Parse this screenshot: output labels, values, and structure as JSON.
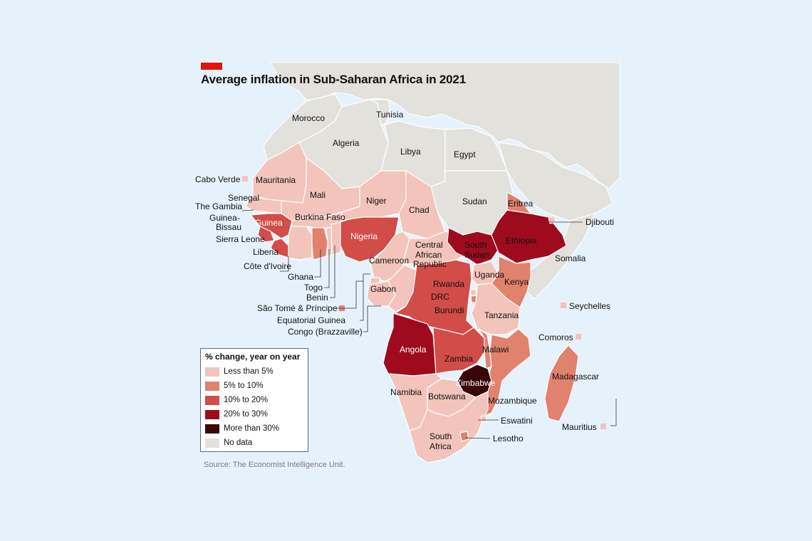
{
  "title": "Average inflation in Sub-Saharan Africa in 2021",
  "source": "Source: The Economist Intelligence Unit.",
  "legend": {
    "title": "% change, year on year",
    "items": [
      {
        "label": "Less than 5%",
        "color": "#f2c4bb"
      },
      {
        "label": "5% to 10%",
        "color": "#e0826e"
      },
      {
        "label": "10% to 20%",
        "color": "#d24c48"
      },
      {
        "label": "20% to 30%",
        "color": "#9e0b1e"
      },
      {
        "label": "More than 30%",
        "color": "#3b0607"
      },
      {
        "label": "No data",
        "color": "#e2e1dc"
      }
    ]
  },
  "colors": {
    "sea": "#e6f2fb",
    "border": "#ffffff",
    "accent": "#e3120b"
  },
  "countries": {
    "Morocco": "nodata",
    "Tunisia": "nodata",
    "Algeria": "nodata",
    "Libya": "nodata",
    "Egypt": "nodata",
    "Sudan": "nodata",
    "Somalia": "nodata",
    "Mauritania": "lt5",
    "Mali": "lt5",
    "Senegal": "lt5",
    "The Gambia": "lt5",
    "Guinea-Bissau": "lt5",
    "Guinea": "10to20",
    "Sierra Leone": "10to20",
    "Liberia": "10to20",
    "Côte d'Ivoire": "lt5",
    "Burkina Faso": "lt5",
    "Ghana": "5to10",
    "Togo": "lt5",
    "Benin": "lt5",
    "Niger": "lt5",
    "Nigeria": "10to20",
    "Chad": "lt5",
    "Cameroon": "lt5",
    "Central African Republic": "lt5",
    "Equatorial Guinea": "lt5",
    "Gabon": "lt5",
    "Congo (Brazzaville)": "lt5",
    "São Tomé & Príncipe": "5to10",
    "DRC": "10to20",
    "South Sudan": "20to30",
    "Ethiopia": "20to30",
    "Eritrea": "5to10",
    "Djibouti": "lt5",
    "Uganda": "lt5",
    "Kenya": "5to10",
    "Rwanda": "lt5",
    "Burundi": "5to10",
    "Tanzania": "lt5",
    "Angola": "20to30",
    "Zambia": "10to20",
    "Malawi": "5to10",
    "Zimbabwe": "gt30",
    "Mozambique": "5to10",
    "Madagascar": "5to10",
    "Namibia": "lt5",
    "Botswana": "lt5",
    "South Africa": "lt5",
    "Eswatini": "lt5",
    "Lesotho": "5to10",
    "Cabo Verde": "lt5",
    "Seychelles": "lt5",
    "Comoros": "lt5",
    "Mauritius": "lt5"
  },
  "labels": {
    "morocco": "Morocco",
    "tunisia": "Tunisia",
    "algeria": "Algeria",
    "libya": "Libya",
    "egypt": "Egypt",
    "sudan": "Sudan",
    "somalia": "Somalia",
    "djibouti": "Djibouti",
    "eritrea": "Eritrea",
    "ethiopia": "Ethiopia",
    "south_sudan_1": "South",
    "south_sudan_2": "Sudan",
    "cabo_verde": "Cabo Verde",
    "mauritania": "Mauritania",
    "mali": "Mali",
    "senegal": "Senegal",
    "gambia": "The Gambia",
    "guinea_bissau_1": "Guinea-",
    "guinea_bissau_2": "Bissau",
    "guinea": "Guinea",
    "sierra_leone": "Sierra Leone",
    "liberia": "Liberia",
    "cote_divoire": "Côte d'Ivoire",
    "ghana": "Ghana",
    "togo": "Togo",
    "benin": "Benin",
    "burkina": "Burkina Faso",
    "niger": "Niger",
    "nigeria": "Nigeria",
    "chad": "Chad",
    "car_1": "Central",
    "car_2": "African",
    "car_3": "Republic",
    "cameroon": "Cameroon",
    "gabon": "Gabon",
    "sao_tome": "São Tomé & Príncipe",
    "eq_guinea": "Equatorial Guinea",
    "congo": "Congo (Brazzaville)",
    "uganda": "Uganda",
    "kenya": "Kenya",
    "rwanda": "Rwanda",
    "drc": "DRC",
    "burundi": "Burundi",
    "tanzania": "Tanzania",
    "seychelles": "Seychelles",
    "comoros": "Comoros",
    "angola": "Angola",
    "zambia": "Zambia",
    "malawi": "Malawi",
    "zimbabwe": "Zimbabwe",
    "madagascar": "Madagascar",
    "namibia": "Namibia",
    "botswana": "Botswana",
    "mozambique": "Mozambique",
    "mauritius": "Mauritius",
    "eswatini": "Eswatini",
    "south_africa_1": "South",
    "south_africa_2": "Africa",
    "lesotho": "Lesotho"
  }
}
